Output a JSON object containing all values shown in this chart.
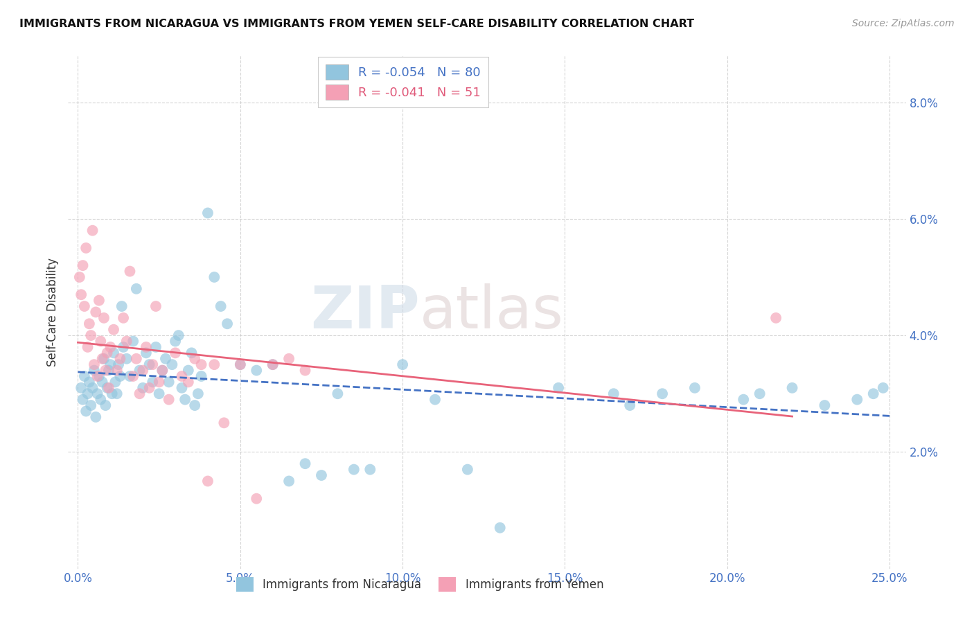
{
  "title": "IMMIGRANTS FROM NICARAGUA VS IMMIGRANTS FROM YEMEN SELF-CARE DISABILITY CORRELATION CHART",
  "source": "Source: ZipAtlas.com",
  "xlabel_vals": [
    0.0,
    5.0,
    10.0,
    15.0,
    20.0,
    25.0
  ],
  "ylabel": "Self-Care Disability",
  "ylabel_vals": [
    2.0,
    4.0,
    6.0,
    8.0
  ],
  "xlim": [
    -0.3,
    25.5
  ],
  "ylim": [
    0.0,
    8.8
  ],
  "color_blue": "#92c5de",
  "color_pink": "#f4a0b5",
  "trendline_blue_color": "#4472c4",
  "trendline_pink_color": "#e8637a",
  "watermark_zip": "ZIP",
  "watermark_atlas": "atlas",
  "nicaragua_x": [
    0.1,
    0.15,
    0.2,
    0.25,
    0.3,
    0.35,
    0.4,
    0.45,
    0.5,
    0.55,
    0.6,
    0.65,
    0.7,
    0.75,
    0.8,
    0.85,
    0.9,
    0.95,
    1.0,
    1.05,
    1.1,
    1.15,
    1.2,
    1.25,
    1.3,
    1.35,
    1.4,
    1.5,
    1.6,
    1.7,
    1.8,
    1.9,
    2.0,
    2.1,
    2.2,
    2.3,
    2.4,
    2.5,
    2.6,
    2.7,
    2.8,
    2.9,
    3.0,
    3.1,
    3.2,
    3.3,
    3.4,
    3.5,
    3.6,
    3.7,
    3.8,
    4.0,
    4.2,
    4.4,
    4.6,
    5.0,
    5.5,
    6.0,
    6.5,
    7.0,
    7.5,
    8.0,
    8.5,
    9.0,
    10.0,
    11.0,
    12.0,
    13.0,
    14.8,
    16.5,
    17.0,
    18.0,
    19.0,
    20.5,
    21.0,
    22.0,
    23.0,
    24.0,
    24.5,
    24.8
  ],
  "nicaragua_y": [
    3.1,
    2.9,
    3.3,
    2.7,
    3.0,
    3.2,
    2.8,
    3.1,
    3.4,
    2.6,
    3.0,
    3.3,
    2.9,
    3.2,
    3.6,
    2.8,
    3.1,
    3.4,
    3.5,
    3.0,
    3.7,
    3.2,
    3.0,
    3.5,
    3.3,
    4.5,
    3.8,
    3.6,
    3.3,
    3.9,
    4.8,
    3.4,
    3.1,
    3.7,
    3.5,
    3.2,
    3.8,
    3.0,
    3.4,
    3.6,
    3.2,
    3.5,
    3.9,
    4.0,
    3.1,
    2.9,
    3.4,
    3.7,
    2.8,
    3.0,
    3.3,
    6.1,
    5.0,
    4.5,
    4.2,
    3.5,
    3.4,
    3.5,
    1.5,
    1.8,
    1.6,
    3.0,
    1.7,
    1.7,
    3.5,
    2.9,
    1.7,
    0.7,
    3.1,
    3.0,
    2.8,
    3.0,
    3.1,
    2.9,
    3.0,
    3.1,
    2.8,
    2.9,
    3.0,
    3.1
  ],
  "yemen_x": [
    0.05,
    0.1,
    0.15,
    0.2,
    0.25,
    0.3,
    0.35,
    0.4,
    0.45,
    0.5,
    0.55,
    0.6,
    0.65,
    0.7,
    0.75,
    0.8,
    0.85,
    0.9,
    0.95,
    1.0,
    1.1,
    1.2,
    1.3,
    1.4,
    1.5,
    1.6,
    1.7,
    1.8,
    1.9,
    2.0,
    2.1,
    2.2,
    2.3,
    2.4,
    2.5,
    2.6,
    2.8,
    3.0,
    3.2,
    3.4,
    3.6,
    3.8,
    4.0,
    4.2,
    4.5,
    5.0,
    5.5,
    6.0,
    6.5,
    7.0,
    21.5
  ],
  "yemen_y": [
    5.0,
    4.7,
    5.2,
    4.5,
    5.5,
    3.8,
    4.2,
    4.0,
    5.8,
    3.5,
    4.4,
    3.3,
    4.6,
    3.9,
    3.6,
    4.3,
    3.4,
    3.7,
    3.1,
    3.8,
    4.1,
    3.4,
    3.6,
    4.3,
    3.9,
    5.1,
    3.3,
    3.6,
    3.0,
    3.4,
    3.8,
    3.1,
    3.5,
    4.5,
    3.2,
    3.4,
    2.9,
    3.7,
    3.3,
    3.2,
    3.6,
    3.5,
    1.5,
    3.5,
    2.5,
    3.5,
    1.2,
    3.5,
    3.6,
    3.4,
    4.3
  ]
}
